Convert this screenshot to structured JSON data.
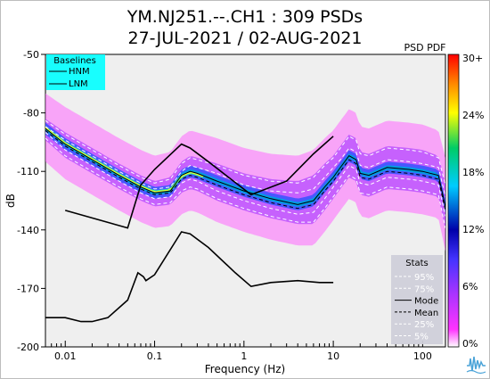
{
  "chart_data": {
    "type": "heatmap",
    "title": "YM.NJ251.--.CH1 : 309 PSDs",
    "subtitle": "27-JUL-2021 / 02-AUG-2021",
    "xlabel": "Frequency (Hz)",
    "ylabel": "dB",
    "x_scale": "log",
    "xlim": [
      0.006,
      180
    ],
    "ylim": [
      -200,
      -50
    ],
    "x_ticks": [
      {
        "value": 0.01,
        "label": "0.01"
      },
      {
        "value": 0.1,
        "label": "0.1"
      },
      {
        "value": 1,
        "label": "1"
      },
      {
        "value": 10,
        "label": "10"
      },
      {
        "value": 100,
        "label": "100"
      }
    ],
    "y_ticks": [
      {
        "value": -50,
        "label": "-50"
      },
      {
        "value": -80,
        "label": "-80"
      },
      {
        "value": -110,
        "label": "-110"
      },
      {
        "value": -140,
        "label": "-140"
      },
      {
        "value": -170,
        "label": "-170"
      },
      {
        "value": -200,
        "label": "-200"
      }
    ],
    "colorbar": {
      "title": "PSD PDF",
      "ticks": [
        "30+",
        "24%",
        "18%",
        "12%",
        "6%",
        "0%"
      ],
      "colors": [
        "#ffffff",
        "#ff33ff",
        "#aa33ff",
        "#3366ff",
        "#0000aa",
        "#00ccff",
        "#00cc66",
        "#ffff00",
        "#ff8800",
        "#ff0000"
      ]
    },
    "baselines_legend": {
      "title": "Baselines",
      "entries": [
        {
          "name": "HNM",
          "style": "solid"
        },
        {
          "name": "LNM",
          "style": "solid"
        }
      ]
    },
    "stats_legend": {
      "title": "Stats",
      "entries": [
        {
          "name": "95%",
          "style": "dashed",
          "color": "#ffffff"
        },
        {
          "name": "75%",
          "style": "dashed",
          "color": "#ffffff"
        },
        {
          "name": "Mode",
          "style": "solid",
          "color": "#000000"
        },
        {
          "name": "Mean",
          "style": "dashed",
          "color": "#000000"
        },
        {
          "name": "25%",
          "style": "dashed",
          "color": "#ffffff"
        },
        {
          "name": "5%",
          "style": "dashed",
          "color": "#ffffff"
        }
      ]
    },
    "series": [
      {
        "name": "HNM",
        "x": [
          0.01,
          0.05,
          0.07,
          0.1,
          0.2,
          0.25,
          0.4,
          1.2,
          3,
          6,
          10
        ],
        "y": [
          -130,
          -139,
          -117,
          -109,
          -96,
          -98,
          -105,
          -122,
          -115,
          -101,
          -92
        ]
      },
      {
        "name": "LNM",
        "x": [
          0.006,
          0.01,
          0.015,
          0.02,
          0.03,
          0.05,
          0.065,
          0.075,
          0.08,
          0.1,
          0.2,
          0.25,
          0.4,
          0.8,
          1.2,
          2,
          4,
          7,
          10
        ],
        "y": [
          -185,
          -185,
          -187,
          -187,
          -185,
          -176,
          -162,
          -164,
          -166,
          -163,
          -141,
          -142,
          -149,
          -162,
          -169,
          -167,
          -166,
          -167,
          -167
        ]
      },
      {
        "name": "Mode",
        "x": [
          0.006,
          0.01,
          0.02,
          0.04,
          0.07,
          0.1,
          0.15,
          0.2,
          0.25,
          0.3,
          0.5,
          1,
          2,
          4,
          6,
          8,
          10,
          12,
          15,
          18,
          20,
          25,
          40,
          70,
          100,
          150,
          180
        ],
        "y": [
          -88,
          -96,
          -104,
          -112,
          -118,
          -121,
          -120,
          -112,
          -110,
          -111,
          -115,
          -120,
          -124,
          -127,
          -125,
          -118,
          -113,
          -108,
          -102,
          -104,
          -111,
          -112,
          -108,
          -109,
          -110,
          -112,
          -128
        ]
      },
      {
        "name": "Mean",
        "x": [
          0.006,
          0.01,
          0.02,
          0.04,
          0.07,
          0.1,
          0.15,
          0.2,
          0.25,
          0.3,
          0.5,
          1,
          2,
          4,
          6,
          8,
          10,
          12,
          15,
          18,
          20,
          25,
          40,
          70,
          100,
          150,
          180
        ],
        "y": [
          -89,
          -97,
          -105,
          -113,
          -119,
          -122,
          -121,
          -114,
          -112,
          -113,
          -117,
          -122,
          -126,
          -129,
          -127,
          -120,
          -115,
          -110,
          -104,
          -106,
          -113,
          -114,
          -110,
          -111,
          -112,
          -114,
          -130
        ]
      },
      {
        "name": "95%",
        "x": [
          0.006,
          0.01,
          0.02,
          0.04,
          0.07,
          0.1,
          0.15,
          0.2,
          0.25,
          0.3,
          0.5,
          1,
          2,
          4,
          6,
          8,
          10,
          12,
          15,
          18,
          20,
          25,
          40,
          70,
          100,
          150,
          180
        ],
        "y": [
          -84,
          -91,
          -99,
          -107,
          -113,
          -116,
          -114,
          -106,
          -103,
          -104,
          -107,
          -112,
          -115,
          -116,
          -113,
          -107,
          -103,
          -98,
          -92,
          -94,
          -101,
          -102,
          -98,
          -99,
          -100,
          -103,
          -117
        ]
      },
      {
        "name": "75%",
        "x": [
          0.006,
          0.01,
          0.02,
          0.04,
          0.07,
          0.1,
          0.15,
          0.2,
          0.25,
          0.3,
          0.5,
          1,
          2,
          4,
          6,
          8,
          10,
          12,
          15,
          18,
          20,
          25,
          40,
          70,
          100,
          150,
          180
        ],
        "y": [
          -87,
          -94,
          -102,
          -110,
          -116,
          -119,
          -118,
          -110,
          -107,
          -108,
          -111,
          -117,
          -120,
          -121,
          -119,
          -113,
          -108,
          -104,
          -98,
          -100,
          -107,
          -108,
          -104,
          -105,
          -106,
          -108,
          -123
        ]
      },
      {
        "name": "25%",
        "x": [
          0.006,
          0.01,
          0.02,
          0.04,
          0.07,
          0.1,
          0.15,
          0.2,
          0.25,
          0.3,
          0.5,
          1,
          2,
          4,
          6,
          8,
          10,
          12,
          15,
          18,
          20,
          25,
          40,
          70,
          100,
          150,
          180
        ],
        "y": [
          -90,
          -99,
          -107,
          -115,
          -121,
          -124,
          -123,
          -116,
          -114,
          -115,
          -120,
          -125,
          -129,
          -132,
          -131,
          -124,
          -118,
          -113,
          -107,
          -109,
          -116,
          -117,
          -113,
          -114,
          -115,
          -117,
          -133
        ]
      },
      {
        "name": "5%",
        "x": [
          0.006,
          0.01,
          0.02,
          0.04,
          0.07,
          0.1,
          0.15,
          0.2,
          0.25,
          0.3,
          0.5,
          1,
          2,
          4,
          6,
          8,
          10,
          12,
          15,
          18,
          20,
          25,
          40,
          70,
          100,
          150,
          180
        ],
        "y": [
          -93,
          -102,
          -110,
          -118,
          -124,
          -127,
          -126,
          -120,
          -118,
          -119,
          -124,
          -129,
          -133,
          -136,
          -136,
          -129,
          -123,
          -118,
          -112,
          -114,
          -121,
          -122,
          -118,
          -119,
          -120,
          -122,
          -139
        ]
      }
    ],
    "grid": false,
    "legend_positions": {
      "baselines": "top-left",
      "stats": "bottom-right"
    }
  }
}
